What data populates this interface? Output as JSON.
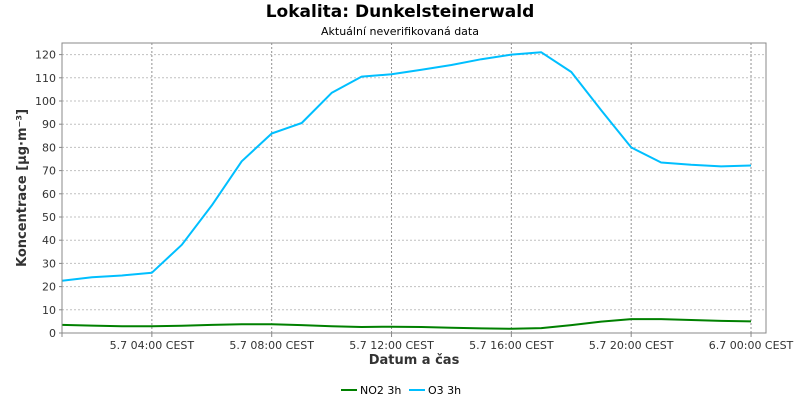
{
  "chart_data": {
    "type": "line",
    "title": "Lokalita: Dunkelsteinerwald",
    "subtitle": "Aktuální neverifikovaná data",
    "xlabel": "Datum a čas",
    "ylabel": "Koncentrace [µg·m⁻³]",
    "ylim": [
      0,
      125
    ],
    "yticks": [
      0,
      10,
      20,
      30,
      40,
      50,
      60,
      70,
      80,
      90,
      100,
      110,
      120
    ],
    "xlim": [
      "5.7 01:00",
      "6.7 00:30"
    ],
    "xticks": [
      {
        "at": "5.7 04:00",
        "label": "5.7 04:00 CEST"
      },
      {
        "at": "5.7 08:00",
        "label": "5.7 08:00 CEST"
      },
      {
        "at": "5.7 12:00",
        "label": "5.7 12:00 CEST"
      },
      {
        "at": "5.7 16:00",
        "label": "5.7 16:00 CEST"
      },
      {
        "at": "5.7 20:00",
        "label": "5.7 20:00 CEST"
      },
      {
        "at": "6.7 00:00",
        "label": "6.7 00:00 CEST"
      }
    ],
    "grid": true,
    "legend_position": "bottom-center",
    "x": [
      "5.7 01:00",
      "5.7 02:00",
      "5.7 03:00",
      "5.7 04:00",
      "5.7 05:00",
      "5.7 06:00",
      "5.7 07:00",
      "5.7 08:00",
      "5.7 09:00",
      "5.7 10:00",
      "5.7 11:00",
      "5.7 12:00",
      "5.7 13:00",
      "5.7 14:00",
      "5.7 15:00",
      "5.7 16:00",
      "5.7 17:00",
      "5.7 18:00",
      "5.7 19:00",
      "5.7 20:00",
      "5.7 21:00",
      "5.7 22:00",
      "5.7 23:00",
      "6.7 00:00"
    ],
    "series": [
      {
        "name": "NO2 3h",
        "color": "#008000",
        "values": [
          3.5,
          3.2,
          2.9,
          2.9,
          3.1,
          3.5,
          3.8,
          3.8,
          3.4,
          2.9,
          2.6,
          2.7,
          2.6,
          2.3,
          2.0,
          1.8,
          2.1,
          3.4,
          4.9,
          6.0,
          6.0,
          5.6,
          5.2,
          5.0
        ]
      },
      {
        "name": "O3 3h",
        "color": "#00bfff",
        "values": [
          22.5,
          24.0,
          24.8,
          26.0,
          38.0,
          55.0,
          74.0,
          86.0,
          90.5,
          103.5,
          110.5,
          111.5,
          113.5,
          115.5,
          118.0,
          120.0,
          121.0,
          112.5,
          96.0,
          80.0,
          73.5,
          72.5,
          71.8,
          72.2
        ]
      }
    ]
  }
}
